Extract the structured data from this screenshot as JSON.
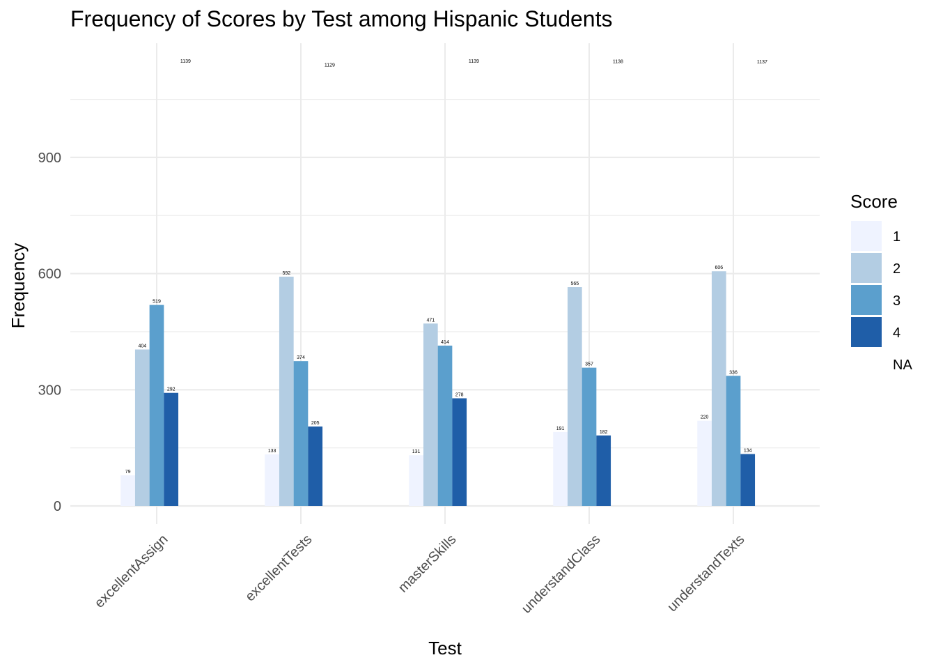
{
  "chart_data": {
    "type": "bar",
    "title": "Frequency of Scores by Test among Hispanic Students",
    "xlabel": "Test",
    "ylabel": "Frequency",
    "categories": [
      "excellentAssign",
      "excellentTests",
      "masterSkills",
      "understandClass",
      "understandTexts"
    ],
    "series": [
      {
        "name": "1",
        "color": "#eff3ff",
        "values": [
          79,
          133,
          131,
          191,
          220
        ]
      },
      {
        "name": "2",
        "color": "#b3cde3",
        "values": [
          404,
          592,
          471,
          565,
          606
        ]
      },
      {
        "name": "3",
        "color": "#5b9fcd",
        "values": [
          519,
          374,
          414,
          357,
          336
        ]
      },
      {
        "name": "4",
        "color": "#1f5ea8",
        "values": [
          292,
          205,
          278,
          182,
          134
        ]
      },
      {
        "name": "NA",
        "color": "none",
        "values": [
          1139,
          1129,
          1139,
          1138,
          1137
        ]
      }
    ],
    "yticks": [
      0,
      300,
      600,
      900
    ],
    "ylim": [
      -50,
      1200
    ],
    "grid": true,
    "legend": {
      "title": "Score",
      "position": "right"
    }
  }
}
